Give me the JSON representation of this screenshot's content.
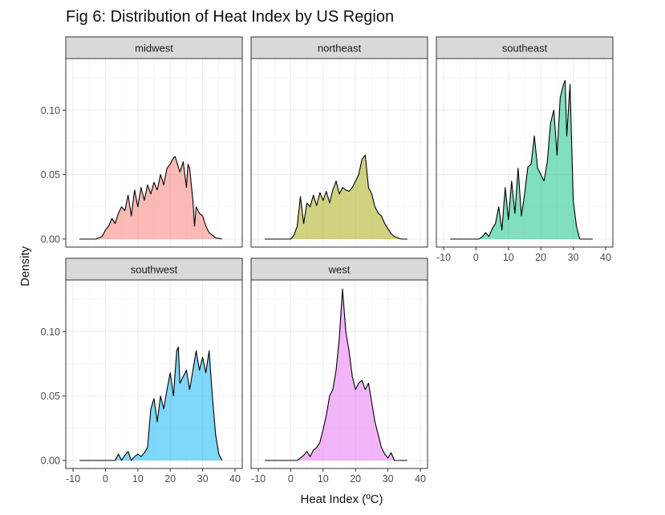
{
  "chart_data": {
    "type": "area",
    "title": "Fig 6: Distribution of Heat Index by US Region",
    "xlabel": "Heat Index (ºC)",
    "ylabel": "Density",
    "xlim": [
      -10,
      40
    ],
    "ylim": [
      0,
      0.135
    ],
    "x_ticks": [
      -10,
      0,
      10,
      20,
      30,
      40
    ],
    "y_ticks": [
      0.0,
      0.05,
      0.1
    ],
    "y_tick_labels": [
      "0.00",
      "0.05",
      "0.10"
    ],
    "grid": true,
    "facets": [
      {
        "name": "midwest",
        "fill": "#F8766D",
        "x": [
          -8,
          -3,
          -1,
          0,
          1,
          2,
          3,
          4,
          5,
          6,
          7,
          8,
          9,
          10,
          11,
          12,
          13,
          14,
          15,
          16,
          17,
          18,
          19,
          20,
          21,
          21.5,
          22,
          23,
          24,
          25,
          25.5,
          26,
          27,
          27.5,
          28,
          29,
          30,
          31,
          32,
          33,
          34,
          36
        ],
        "y": [
          0,
          0,
          0.002,
          0.007,
          0.01,
          0.016,
          0.012,
          0.02,
          0.025,
          0.022,
          0.034,
          0.018,
          0.038,
          0.025,
          0.04,
          0.03,
          0.042,
          0.035,
          0.044,
          0.038,
          0.05,
          0.042,
          0.055,
          0.058,
          0.063,
          0.064,
          0.06,
          0.052,
          0.06,
          0.04,
          0.058,
          0.055,
          0.03,
          0.01,
          0.025,
          0.02,
          0.018,
          0.01,
          0.005,
          0.003,
          0.001,
          0
        ]
      },
      {
        "name": "northeast",
        "fill": "#A3A500",
        "x": [
          -8,
          0,
          1,
          2,
          3,
          4,
          5,
          6,
          7,
          8,
          9,
          10,
          11,
          12,
          13,
          14,
          15,
          16,
          17,
          18,
          19,
          20,
          21,
          22,
          23,
          24,
          25,
          26,
          27,
          28,
          29,
          30,
          31,
          32,
          33,
          34,
          36
        ],
        "y": [
          0,
          0,
          0.003,
          0.01,
          0.033,
          0.012,
          0.028,
          0.025,
          0.034,
          0.026,
          0.036,
          0.03,
          0.037,
          0.028,
          0.038,
          0.045,
          0.035,
          0.04,
          0.038,
          0.037,
          0.04,
          0.045,
          0.05,
          0.062,
          0.065,
          0.04,
          0.035,
          0.025,
          0.02,
          0.018,
          0.012,
          0.008,
          0.004,
          0.002,
          0.001,
          0,
          0
        ]
      },
      {
        "name": "southeast",
        "fill": "#00BF7D",
        "x": [
          -8,
          0,
          1,
          2,
          3,
          4,
          5,
          6,
          7,
          8,
          9,
          10,
          11,
          12,
          13,
          14,
          15,
          16,
          17,
          18,
          19,
          20,
          21,
          22,
          23,
          24,
          25,
          26,
          27,
          27.5,
          28,
          29,
          30,
          31,
          32,
          33,
          34,
          36
        ],
        "y": [
          0,
          0,
          0,
          0.002,
          0.005,
          0.002,
          0.008,
          0.012,
          0.025,
          0.007,
          0.04,
          0.015,
          0.045,
          0.02,
          0.055,
          0.018,
          0.035,
          0.056,
          0.058,
          0.08,
          0.055,
          0.05,
          0.045,
          0.06,
          0.09,
          0.1,
          0.065,
          0.11,
          0.12,
          0.123,
          0.08,
          0.12,
          0.03,
          0.01,
          0,
          0,
          0,
          0
        ]
      },
      {
        "name": "southwest",
        "fill": "#00B0F6",
        "x": [
          -8,
          3,
          4,
          5,
          6,
          7,
          8,
          9,
          10,
          11,
          12,
          13,
          14,
          15,
          16,
          17,
          18,
          19,
          20,
          21,
          22,
          22.5,
          23,
          24,
          25,
          26,
          27,
          28,
          29,
          30,
          31,
          32,
          33,
          34,
          35,
          36
        ],
        "y": [
          0,
          0,
          0.005,
          0,
          0.004,
          0.007,
          0,
          0.003,
          0.005,
          0.003,
          0.006,
          0.01,
          0.04,
          0.048,
          0.03,
          0.05,
          0.04,
          0.055,
          0.068,
          0.05,
          0.085,
          0.088,
          0.06,
          0.065,
          0.07,
          0.055,
          0.07,
          0.085,
          0.07,
          0.08,
          0.068,
          0.085,
          0.05,
          0.02,
          0.005,
          0
        ]
      },
      {
        "name": "west",
        "fill": "#E76BF3",
        "x": [
          -8,
          0,
          2,
          3,
          4,
          5,
          6,
          7,
          8,
          9,
          10,
          11,
          12,
          13,
          14,
          15,
          16,
          17,
          18,
          19,
          20,
          21,
          22,
          23,
          24,
          25,
          26,
          27,
          28,
          29,
          30,
          31,
          32,
          34,
          36
        ],
        "y": [
          0,
          0,
          0,
          0.002,
          0.004,
          0.007,
          0.003,
          0.008,
          0.01,
          0.014,
          0.024,
          0.035,
          0.05,
          0.055,
          0.07,
          0.095,
          0.133,
          0.1,
          0.085,
          0.065,
          0.055,
          0.06,
          0.062,
          0.055,
          0.06,
          0.045,
          0.03,
          0.02,
          0.01,
          0.005,
          0.002,
          0.006,
          0,
          0,
          0
        ]
      }
    ]
  }
}
